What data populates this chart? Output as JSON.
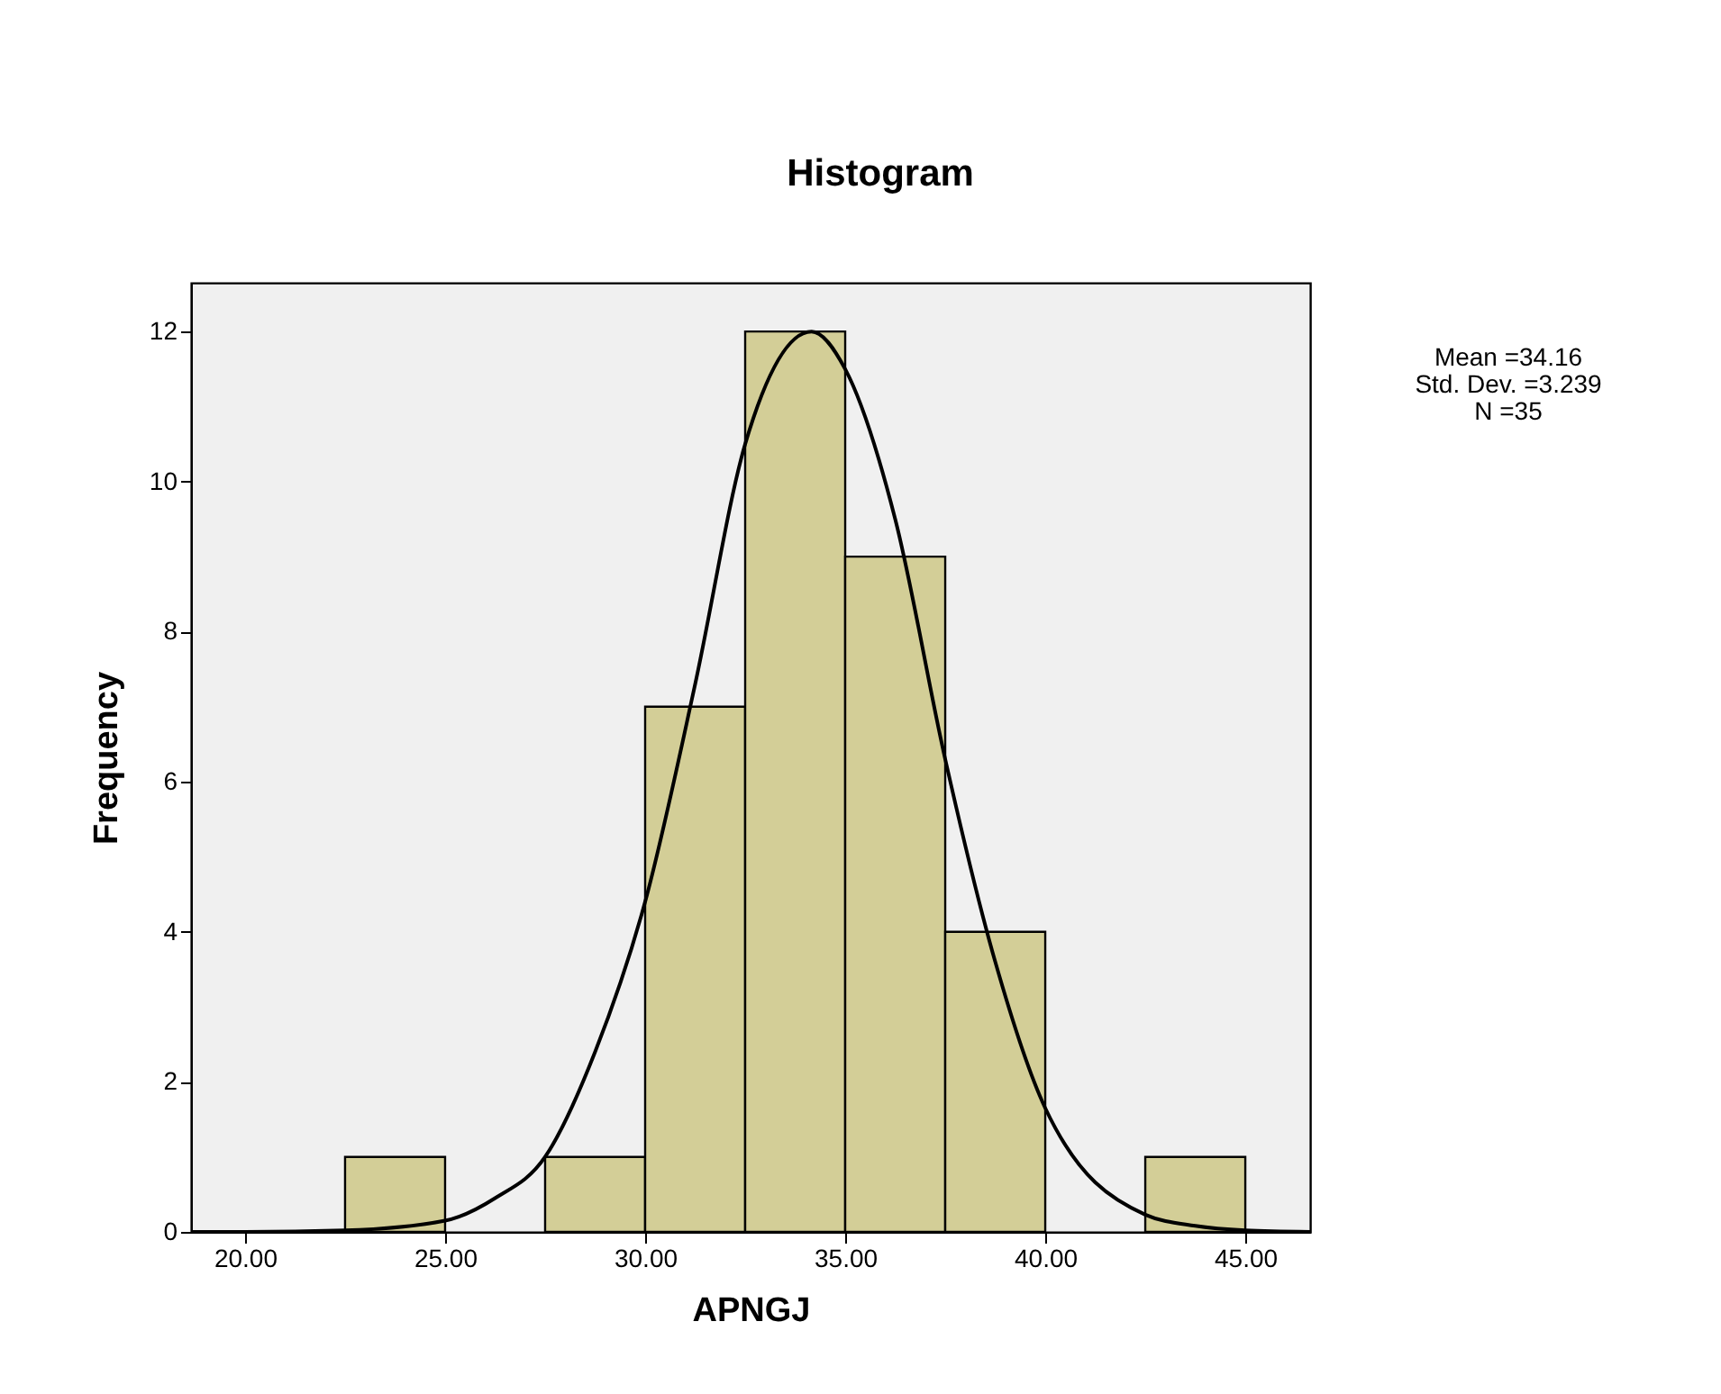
{
  "chart_data": {
    "type": "histogram",
    "title": "Histogram",
    "xlabel": "APNGJ",
    "ylabel": "Frequency",
    "bins": [
      22.5,
      25,
      27.5,
      30,
      32.5,
      35,
      37.5,
      40,
      42.5,
      45
    ],
    "series": [
      {
        "type": "histogram",
        "color": "#d3ce97",
        "values": [
          1,
          0,
          1,
          7,
          12,
          9,
          4,
          0,
          1
        ]
      },
      {
        "type": "line",
        "color": "#000000",
        "x": [
          18.65,
          20,
          22.5,
          25,
          26.25,
          27.5,
          28.75,
          30,
          31.25,
          32.5,
          34.16,
          35,
          36.25,
          37.5,
          38.75,
          40,
          42.5,
          43.75,
          45,
          46.62
        ],
        "values": [
          0,
          0,
          0.02,
          0.15,
          0.45,
          1.0,
          2.4,
          4.4,
          7.3,
          10.5,
          12.0,
          11.5,
          9.5,
          6.3,
          3.6,
          1.65,
          0.23,
          0.08,
          0.02,
          0
        ]
      }
    ],
    "xlim": [
      18.65,
      46.62
    ],
    "ylim": [
      0,
      12.65
    ],
    "xticks": [
      {
        "value": 20,
        "label": "20.00"
      },
      {
        "value": 25,
        "label": "25.00"
      },
      {
        "value": 30,
        "label": "30.00"
      },
      {
        "value": 35,
        "label": "35.00"
      },
      {
        "value": 40,
        "label": "40.00"
      },
      {
        "value": 45,
        "label": "45.00"
      }
    ],
    "yticks": [
      0,
      2,
      4,
      6,
      8,
      10,
      12
    ],
    "grid": false,
    "annotations": [
      "Mean =34.16",
      "Std. Dev. =3.239",
      "N =35"
    ]
  }
}
